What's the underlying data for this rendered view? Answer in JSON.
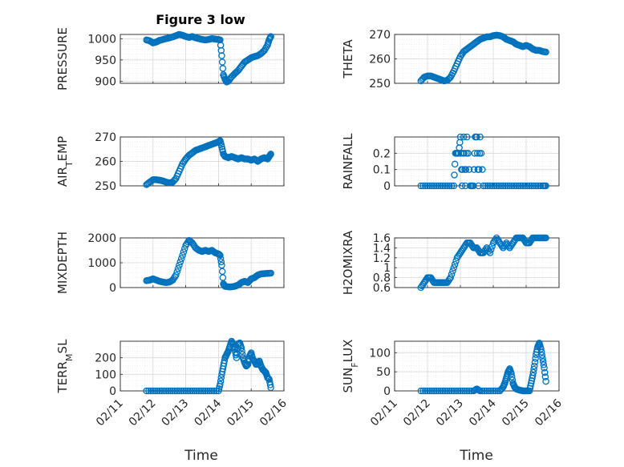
{
  "figure": {
    "title": "Figure 3 low",
    "x_label": "Time",
    "marker_color": "#0072BD"
  },
  "chart_data": [
    {
      "type": "scatter",
      "ylabel": "PRESSURE",
      "ylim": [
        895,
        1010
      ],
      "yticks": [
        900,
        950,
        1000
      ],
      "xticks": [
        "02/11",
        "02/12",
        "02/13",
        "02/14",
        "02/15",
        "02/16"
      ],
      "xlim": [
        0,
        5
      ],
      "grid": true,
      "points": [
        [
          0.8,
          997
        ],
        [
          0.9,
          995
        ],
        [
          1.0,
          990
        ],
        [
          1.1,
          992
        ],
        [
          1.2,
          996
        ],
        [
          1.3,
          998
        ],
        [
          1.4,
          1000
        ],
        [
          1.5,
          1002
        ],
        [
          1.6,
          1004
        ],
        [
          1.7,
          1007
        ],
        [
          1.8,
          1010
        ],
        [
          1.9,
          1008
        ],
        [
          2.0,
          1005
        ],
        [
          2.1,
          1003
        ],
        [
          2.2,
          1005
        ],
        [
          2.3,
          1002
        ],
        [
          2.4,
          1000
        ],
        [
          2.5,
          998
        ],
        [
          2.6,
          997
        ],
        [
          2.7,
          998
        ],
        [
          2.8,
          1000
        ],
        [
          2.9,
          999
        ],
        [
          3.0,
          998
        ],
        [
          3.05,
          997
        ],
        [
          3.1,
          960
        ],
        [
          3.15,
          915
        ],
        [
          3.2,
          905
        ],
        [
          3.25,
          898
        ],
        [
          3.3,
          900
        ],
        [
          3.4,
          910
        ],
        [
          3.5,
          918
        ],
        [
          3.6,
          925
        ],
        [
          3.7,
          935
        ],
        [
          3.8,
          945
        ],
        [
          3.9,
          950
        ],
        [
          4.0,
          955
        ],
        [
          4.1,
          958
        ],
        [
          4.2,
          960
        ],
        [
          4.3,
          965
        ],
        [
          4.4,
          972
        ],
        [
          4.5,
          985
        ],
        [
          4.55,
          998
        ],
        [
          4.6,
          1005
        ]
      ]
    },
    {
      "type": "scatter",
      "ylabel": "THETA",
      "ylim": [
        250,
        270
      ],
      "yticks": [
        250,
        260,
        270
      ],
      "xticks": [
        "02/11",
        "02/12",
        "02/13",
        "02/14",
        "02/15",
        "02/16"
      ],
      "xlim": [
        0,
        5
      ],
      "grid": true,
      "points": [
        [
          0.8,
          251
        ],
        [
          0.9,
          252.5
        ],
        [
          1.0,
          253
        ],
        [
          1.1,
          253
        ],
        [
          1.2,
          252.5
        ],
        [
          1.3,
          252
        ],
        [
          1.4,
          251.5
        ],
        [
          1.5,
          251
        ],
        [
          1.6,
          251.2
        ],
        [
          1.7,
          252.5
        ],
        [
          1.8,
          255
        ],
        [
          1.9,
          258
        ],
        [
          2.0,
          261
        ],
        [
          2.1,
          263
        ],
        [
          2.2,
          264
        ],
        [
          2.3,
          265
        ],
        [
          2.4,
          266
        ],
        [
          2.5,
          267
        ],
        [
          2.6,
          268
        ],
        [
          2.7,
          268.5
        ],
        [
          2.8,
          269
        ],
        [
          2.9,
          269
        ],
        [
          3.0,
          269.5
        ],
        [
          3.1,
          269.7
        ],
        [
          3.2,
          269.5
        ],
        [
          3.3,
          269
        ],
        [
          3.4,
          268
        ],
        [
          3.5,
          267.5
        ],
        [
          3.6,
          267
        ],
        [
          3.7,
          266
        ],
        [
          3.8,
          265.5
        ],
        [
          3.9,
          265
        ],
        [
          4.0,
          265.5
        ],
        [
          4.1,
          265
        ],
        [
          4.2,
          264
        ],
        [
          4.3,
          263.5
        ],
        [
          4.4,
          263.5
        ],
        [
          4.5,
          263
        ],
        [
          4.6,
          262.8
        ]
      ]
    },
    {
      "type": "scatter",
      "ylabel": "AIR_TEMP",
      "ylim": [
        250,
        270
      ],
      "yticks": [
        250,
        260,
        270
      ],
      "xticks": [
        "02/11",
        "02/12",
        "02/13",
        "02/14",
        "02/15",
        "02/16"
      ],
      "xlim": [
        0,
        5
      ],
      "grid": true,
      "points": [
        [
          0.8,
          250.5
        ],
        [
          0.9,
          251.5
        ],
        [
          1.0,
          252.5
        ],
        [
          1.1,
          252.5
        ],
        [
          1.2,
          252.3
        ],
        [
          1.3,
          252
        ],
        [
          1.4,
          251.5
        ],
        [
          1.5,
          251.2
        ],
        [
          1.6,
          251.5
        ],
        [
          1.7,
          253
        ],
        [
          1.8,
          256
        ],
        [
          1.9,
          259
        ],
        [
          2.0,
          261
        ],
        [
          2.1,
          262.5
        ],
        [
          2.2,
          263.5
        ],
        [
          2.3,
          264.5
        ],
        [
          2.4,
          265
        ],
        [
          2.5,
          265.5
        ],
        [
          2.6,
          266
        ],
        [
          2.7,
          266.5
        ],
        [
          2.8,
          267
        ],
        [
          2.9,
          267.5
        ],
        [
          3.0,
          268
        ],
        [
          3.05,
          268.5
        ],
        [
          3.1,
          266
        ],
        [
          3.15,
          263
        ],
        [
          3.2,
          262
        ],
        [
          3.3,
          261.5
        ],
        [
          3.4,
          262
        ],
        [
          3.5,
          261.5
        ],
        [
          3.6,
          261
        ],
        [
          3.7,
          261.5
        ],
        [
          3.8,
          261
        ],
        [
          3.9,
          261
        ],
        [
          4.0,
          260.5
        ],
        [
          4.1,
          261
        ],
        [
          4.2,
          260
        ],
        [
          4.3,
          261
        ],
        [
          4.4,
          261.5
        ],
        [
          4.5,
          261
        ],
        [
          4.55,
          262
        ],
        [
          4.6,
          263
        ]
      ]
    },
    {
      "type": "scatter",
      "ylabel": "RAINFALL",
      "ylim": [
        0,
        0.3
      ],
      "yticks": [
        0,
        0.1,
        0.2
      ],
      "xticks": [
        "02/11",
        "02/12",
        "02/13",
        "02/14",
        "02/15",
        "02/16"
      ],
      "xlim": [
        0,
        5
      ],
      "grid": true,
      "points": [
        [
          0.8,
          0
        ],
        [
          1.0,
          0
        ],
        [
          1.2,
          0
        ],
        [
          1.4,
          0
        ],
        [
          1.6,
          0
        ],
        [
          1.8,
          0
        ],
        [
          1.85,
          0.2
        ],
        [
          1.9,
          0.2
        ],
        [
          1.95,
          0.2
        ],
        [
          2.0,
          0.3
        ],
        [
          2.05,
          0
        ],
        [
          2.1,
          0.3
        ],
        [
          2.15,
          0
        ],
        [
          2.2,
          0.3
        ],
        [
          2.3,
          0
        ],
        [
          2.4,
          0
        ],
        [
          2.45,
          0.3
        ],
        [
          2.5,
          0.3
        ],
        [
          2.55,
          0
        ],
        [
          2.6,
          0.3
        ],
        [
          2.7,
          0
        ],
        [
          2.9,
          0
        ],
        [
          3.1,
          0
        ],
        [
          3.3,
          0
        ],
        [
          3.5,
          0
        ],
        [
          3.7,
          0
        ],
        [
          3.9,
          0
        ],
        [
          4.1,
          0
        ],
        [
          4.3,
          0
        ],
        [
          4.5,
          0
        ],
        [
          4.6,
          0
        ]
      ]
    },
    {
      "type": "scatter",
      "ylabel": "MIXDEPTH",
      "ylim": [
        0,
        2000
      ],
      "yticks": [
        0,
        1000,
        2000
      ],
      "xticks": [
        "02/11",
        "02/12",
        "02/13",
        "02/14",
        "02/15",
        "02/16"
      ],
      "xlim": [
        0,
        5
      ],
      "grid": true,
      "points": [
        [
          0.8,
          280
        ],
        [
          0.9,
          300
        ],
        [
          1.0,
          350
        ],
        [
          1.1,
          300
        ],
        [
          1.2,
          250
        ],
        [
          1.3,
          220
        ],
        [
          1.4,
          200
        ],
        [
          1.5,
          220
        ],
        [
          1.6,
          300
        ],
        [
          1.7,
          500
        ],
        [
          1.8,
          900
        ],
        [
          1.9,
          1300
        ],
        [
          2.0,
          1700
        ],
        [
          2.1,
          1900
        ],
        [
          2.2,
          1800
        ],
        [
          2.3,
          1600
        ],
        [
          2.4,
          1500
        ],
        [
          2.5,
          1450
        ],
        [
          2.6,
          1500
        ],
        [
          2.7,
          1450
        ],
        [
          2.8,
          1500
        ],
        [
          2.9,
          1400
        ],
        [
          3.0,
          1350
        ],
        [
          3.05,
          1300
        ],
        [
          3.1,
          900
        ],
        [
          3.15,
          150
        ],
        [
          3.2,
          50
        ],
        [
          3.3,
          30
        ],
        [
          3.4,
          30
        ],
        [
          3.5,
          50
        ],
        [
          3.6,
          100
        ],
        [
          3.7,
          200
        ],
        [
          3.8,
          250
        ],
        [
          3.9,
          200
        ],
        [
          4.0,
          350
        ],
        [
          4.1,
          400
        ],
        [
          4.2,
          500
        ],
        [
          4.3,
          550
        ],
        [
          4.4,
          560
        ],
        [
          4.5,
          570
        ],
        [
          4.6,
          580
        ]
      ]
    },
    {
      "type": "scatter",
      "ylabel": "H2OMIXRA",
      "ylim": [
        0.6,
        1.6
      ],
      "yticks": [
        0.6,
        0.8,
        1,
        1.2,
        1.4,
        1.6
      ],
      "xticks": [
        "02/11",
        "02/12",
        "02/13",
        "02/14",
        "02/15",
        "02/16"
      ],
      "xlim": [
        0,
        5
      ],
      "grid": true,
      "points": [
        [
          0.8,
          0.6
        ],
        [
          0.9,
          0.7
        ],
        [
          1.0,
          0.8
        ],
        [
          1.1,
          0.8
        ],
        [
          1.2,
          0.7
        ],
        [
          1.3,
          0.7
        ],
        [
          1.4,
          0.7
        ],
        [
          1.5,
          0.7
        ],
        [
          1.6,
          0.7
        ],
        [
          1.7,
          0.8
        ],
        [
          1.8,
          1.0
        ],
        [
          1.9,
          1.2
        ],
        [
          2.0,
          1.3
        ],
        [
          2.1,
          1.4
        ],
        [
          2.2,
          1.5
        ],
        [
          2.3,
          1.5
        ],
        [
          2.4,
          1.4
        ],
        [
          2.5,
          1.4
        ],
        [
          2.6,
          1.3
        ],
        [
          2.7,
          1.3
        ],
        [
          2.8,
          1.4
        ],
        [
          2.9,
          1.3
        ],
        [
          3.0,
          1.5
        ],
        [
          3.1,
          1.6
        ],
        [
          3.2,
          1.5
        ],
        [
          3.3,
          1.4
        ],
        [
          3.4,
          1.5
        ],
        [
          3.5,
          1.4
        ],
        [
          3.6,
          1.5
        ],
        [
          3.7,
          1.6
        ],
        [
          3.8,
          1.6
        ],
        [
          3.9,
          1.6
        ],
        [
          4.0,
          1.5
        ],
        [
          4.1,
          1.5
        ],
        [
          4.2,
          1.6
        ],
        [
          4.3,
          1.6
        ],
        [
          4.4,
          1.6
        ],
        [
          4.5,
          1.6
        ],
        [
          4.6,
          1.6
        ]
      ]
    },
    {
      "type": "scatter",
      "ylabel": "TERR_MSL",
      "ylim": [
        0,
        300
      ],
      "yticks": [
        0,
        100,
        200
      ],
      "xticks": [
        "02/11",
        "02/12",
        "02/13",
        "02/14",
        "02/15",
        "02/16"
      ],
      "xlim": [
        0,
        5
      ],
      "grid": true,
      "points": [
        [
          0.8,
          0
        ],
        [
          1.0,
          0
        ],
        [
          1.2,
          0
        ],
        [
          1.4,
          0
        ],
        [
          1.6,
          0
        ],
        [
          1.8,
          0
        ],
        [
          2.0,
          0
        ],
        [
          2.2,
          0
        ],
        [
          2.4,
          0
        ],
        [
          2.6,
          0
        ],
        [
          2.8,
          0
        ],
        [
          3.0,
          0
        ],
        [
          3.05,
          40
        ],
        [
          3.1,
          100
        ],
        [
          3.15,
          150
        ],
        [
          3.2,
          200
        ],
        [
          3.25,
          220
        ],
        [
          3.3,
          240
        ],
        [
          3.35,
          270
        ],
        [
          3.4,
          300
        ],
        [
          3.45,
          280
        ],
        [
          3.5,
          250
        ],
        [
          3.55,
          200
        ],
        [
          3.6,
          280
        ],
        [
          3.65,
          290
        ],
        [
          3.7,
          260
        ],
        [
          3.75,
          200
        ],
        [
          3.8,
          170
        ],
        [
          3.85,
          150
        ],
        [
          3.9,
          160
        ],
        [
          3.95,
          210
        ],
        [
          4.0,
          230
        ],
        [
          4.05,
          190
        ],
        [
          4.1,
          180
        ],
        [
          4.15,
          160
        ],
        [
          4.2,
          160
        ],
        [
          4.25,
          180
        ],
        [
          4.3,
          150
        ],
        [
          4.35,
          130
        ],
        [
          4.4,
          120
        ],
        [
          4.45,
          110
        ],
        [
          4.5,
          80
        ],
        [
          4.55,
          70
        ],
        [
          4.6,
          20
        ]
      ]
    },
    {
      "type": "scatter",
      "ylabel": "SUN_FLUX",
      "ylim": [
        0,
        130
      ],
      "yticks": [
        0,
        50,
        100
      ],
      "xticks": [
        "02/11",
        "02/12",
        "02/13",
        "02/14",
        "02/15",
        "02/16"
      ],
      "xlim": [
        0,
        5
      ],
      "grid": true,
      "points": [
        [
          0.8,
          0
        ],
        [
          1.0,
          0
        ],
        [
          1.2,
          0
        ],
        [
          1.4,
          0
        ],
        [
          1.6,
          0
        ],
        [
          1.8,
          0
        ],
        [
          2.0,
          0
        ],
        [
          2.2,
          0
        ],
        [
          2.4,
          0
        ],
        [
          2.5,
          5
        ],
        [
          2.6,
          0
        ],
        [
          2.8,
          0
        ],
        [
          3.0,
          0
        ],
        [
          3.2,
          0
        ],
        [
          3.3,
          10
        ],
        [
          3.35,
          20
        ],
        [
          3.4,
          35
        ],
        [
          3.45,
          50
        ],
        [
          3.5,
          58
        ],
        [
          3.55,
          45
        ],
        [
          3.6,
          20
        ],
        [
          3.65,
          10
        ],
        [
          3.7,
          5
        ],
        [
          3.8,
          2
        ],
        [
          3.9,
          0
        ],
        [
          4.0,
          0
        ],
        [
          4.1,
          0
        ],
        [
          4.15,
          20
        ],
        [
          4.2,
          40
        ],
        [
          4.25,
          65
        ],
        [
          4.3,
          95
        ],
        [
          4.35,
          115
        ],
        [
          4.4,
          125
        ],
        [
          4.45,
          110
        ],
        [
          4.5,
          85
        ],
        [
          4.55,
          60
        ],
        [
          4.6,
          25
        ]
      ]
    }
  ]
}
